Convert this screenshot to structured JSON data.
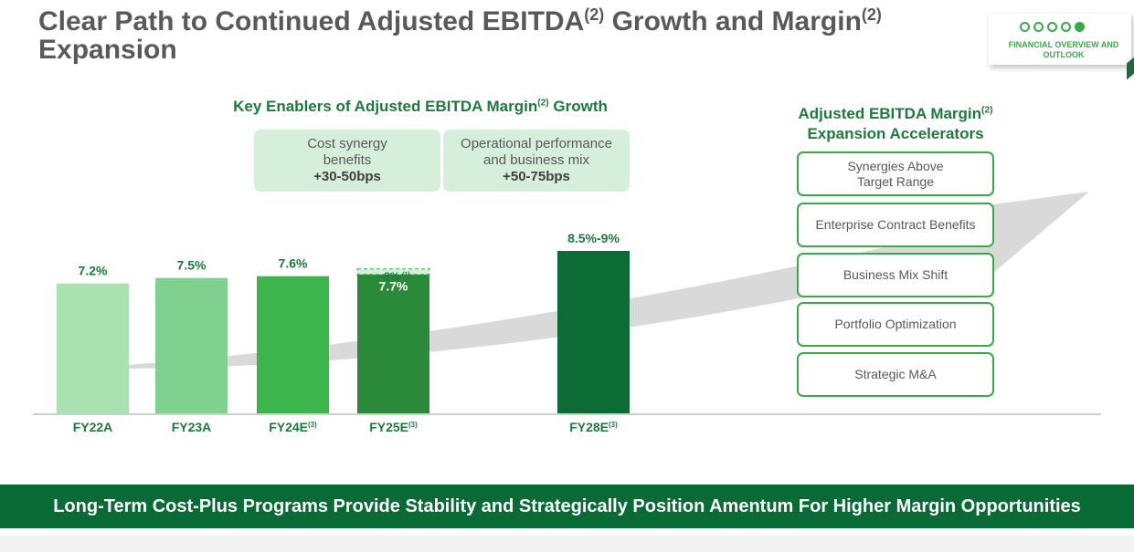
{
  "title": {
    "main": "Clear Path to Continued Adjusted EBITDA",
    "sup1": "(2)",
    "mid": " Growth and Margin",
    "sup2": "(2)",
    "end": " Expansion"
  },
  "nav": {
    "dots_total": 5,
    "active_index": 4,
    "label": "FINANCIAL OVERVIEW AND OUTLOOK"
  },
  "enablers": {
    "title": "Key Enablers of Adjusted EBITDA Margin",
    "title_sup": "(2)",
    "title_end": " Growth",
    "items": [
      {
        "line1": "Cost synergy",
        "line2": "benefits",
        "value": "+30-50bps"
      },
      {
        "line1": "Operational performance",
        "line2": "and business mix",
        "value": "+50-75bps"
      }
    ]
  },
  "accelerators": {
    "title_line1": "Adjusted EBITDA Margin",
    "title_sup": "(2)",
    "title_line2": "Expansion Accelerators",
    "items": [
      {
        "line1": "Synergies Above",
        "line2": "Target Range"
      },
      {
        "line1": "Enterprise Contract Benefits",
        "line2": ""
      },
      {
        "line1": "Business Mix Shift",
        "line2": ""
      },
      {
        "line1": "Portfolio Optimization",
        "line2": ""
      },
      {
        "line1": "Strategic M&A",
        "line2": ""
      }
    ]
  },
  "chart_data": {
    "type": "bar",
    "categories": [
      "FY22A",
      "FY23A",
      "FY24E",
      "FY25E",
      "FY28E"
    ],
    "category_sups": [
      "",
      "",
      "(3)",
      "(3)",
      "(3)"
    ],
    "values": [
      7.2,
      7.5,
      7.6,
      7.7,
      9.0
    ],
    "labels": [
      "7.2%",
      "7.5%",
      "7.6%",
      "7.7%",
      "8.5%-9%"
    ],
    "colors": [
      "#a9e2b0",
      "#80d18f",
      "#3cb54c",
      "#2b8a3a",
      "#0d6b36"
    ],
    "label_colors": [
      "#1e7a3c",
      "#1e7a3c",
      "#1e7a3c",
      "#ffffff",
      "#1e7a3c"
    ],
    "extension": {
      "category": "FY25E",
      "label": "~8%",
      "label_sup": "(1)",
      "value": 8.0
    },
    "range_low": 8.5,
    "ylim": [
      0,
      9.0
    ]
  },
  "banner": "Long-Term Cost-Plus Programs Provide Stability and Strategically Position Amentum For Higher Margin Opportunities"
}
